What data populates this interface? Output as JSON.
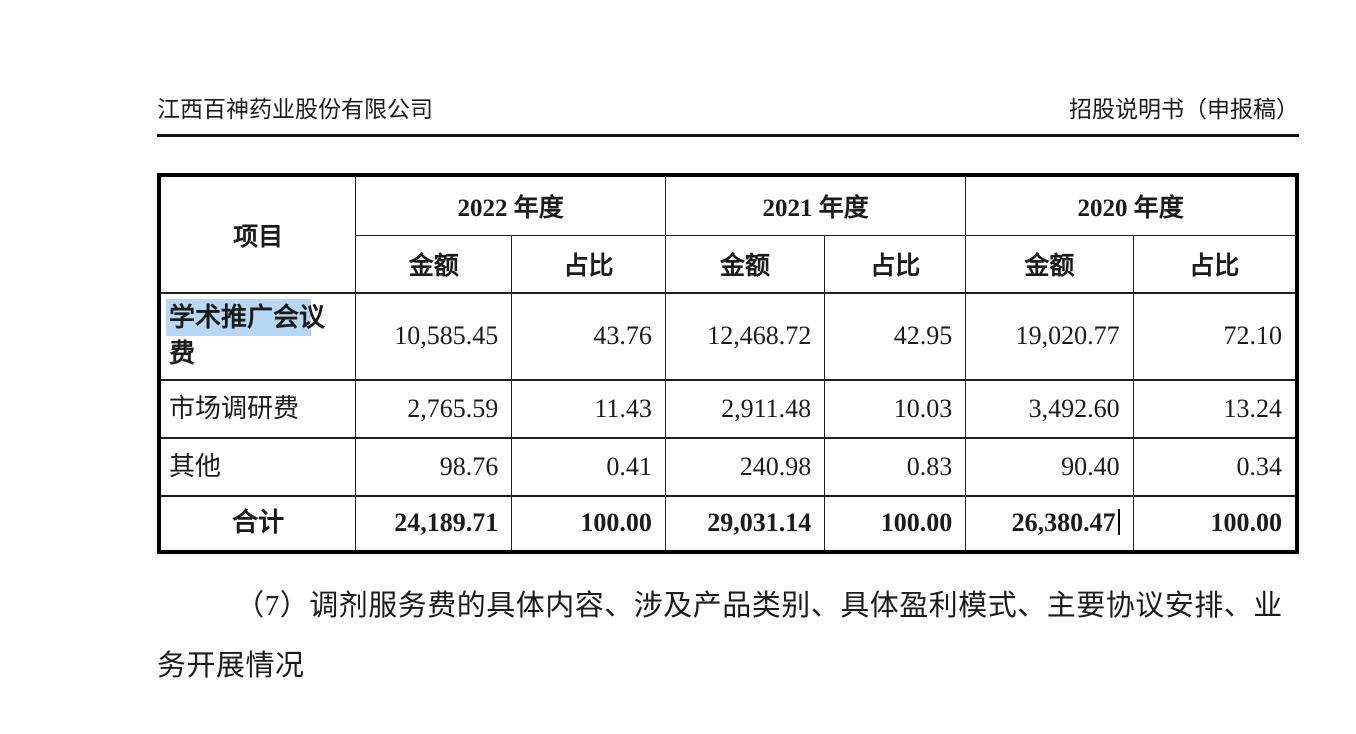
{
  "page": {
    "header_left": "江西百神药业股份有限公司",
    "header_right": "招股说明书（申报稿）"
  },
  "table": {
    "item_header": "项目",
    "year_groups": [
      {
        "year": "2022 年度",
        "sub_headers": [
          "金额",
          "占比"
        ]
      },
      {
        "year": "2021 年度",
        "sub_headers": [
          "金额",
          "占比"
        ]
      },
      {
        "year": "2020 年度",
        "sub_headers": [
          "金额",
          "占比"
        ]
      }
    ],
    "rows": [
      {
        "label": "学术推广会议费",
        "highlight": "学术推广会",
        "bold_label": true,
        "values": [
          "10,585.45",
          "43.76",
          "12,468.72",
          "42.95",
          "19,020.77",
          "72.10"
        ]
      },
      {
        "label": "市场调研费",
        "values": [
          "2,765.59",
          "11.43",
          "2,911.48",
          "10.03",
          "3,492.60",
          "13.24"
        ]
      },
      {
        "label": "其他",
        "values": [
          "98.76",
          "0.41",
          "240.98",
          "0.83",
          "90.40",
          "0.34"
        ]
      },
      {
        "label": "合计",
        "total": true,
        "caret_col": 4,
        "values": [
          "24,189.71",
          "100.00",
          "29,031.14",
          "100.00",
          "26,380.47",
          "100.00"
        ]
      }
    ]
  },
  "paragraph": "（7）调剂服务费的具体内容、涉及产品类别、具体盈利模式、主要协议安排、业务开展情况",
  "colors": {
    "selection_highlight": "#b6d8f5",
    "text": "#1b1b1b",
    "border": "#000000"
  }
}
